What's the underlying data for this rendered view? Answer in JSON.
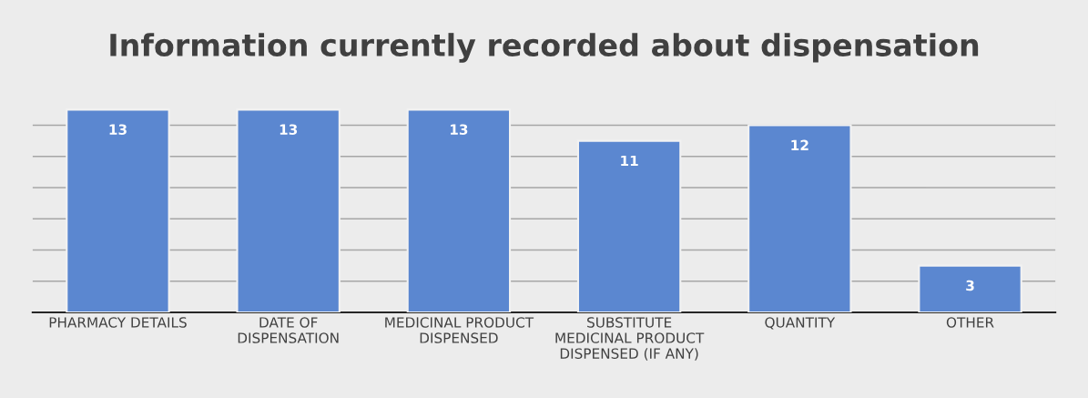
{
  "chart_data": {
    "type": "bar",
    "title": "Information currently recorded about dispensation",
    "categories": [
      "PHARMACY DETAILS",
      "DATE OF\nDISPENSATION",
      "MEDICINAL PRODUCT\nDISPENSED",
      "SUBSTITUTE\nMEDICINAL PRODUCT\nDISPENSED (IF ANY)",
      "QUANTITY",
      "OTHER"
    ],
    "values": [
      13,
      13,
      13,
      11,
      12,
      3
    ],
    "color": "#5b87d0",
    "data_labels": true,
    "tick_labels": "x",
    "grid": "y",
    "legend": false
  }
}
